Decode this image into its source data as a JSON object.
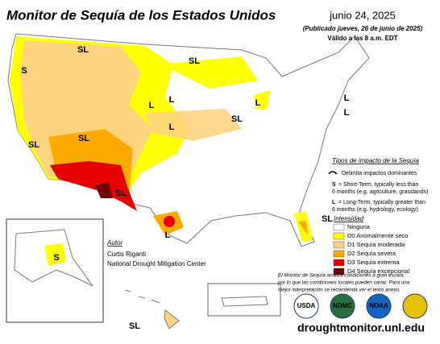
{
  "header": {
    "title": "Monitor de Sequía de los Estados Unidos",
    "date": "junio 24, 2025",
    "published": "(Publicado jueves, 26 de junio de 2025)",
    "valid": "Válido a las 8 a.m. EDT"
  },
  "impact_types": {
    "title": "Tipos de impacto de la Sequía",
    "boundary": "Delimita impactos dominantes",
    "short_key": "S",
    "short_text_1": "= Short-Term, typically less than",
    "short_text_2": "6 months (e.g. agriculture, grasslands)",
    "long_key": "L",
    "long_text_1": "= Long-Term, typically greater than",
    "long_text_2": "6 months (e.g. hydrology, ecology)"
  },
  "intensity": {
    "title": "Intensidad",
    "levels": [
      {
        "label": "Ninguna",
        "color": "#ffffff"
      },
      {
        "label": "D0 Anomalmente seco",
        "color": "#ffff00"
      },
      {
        "label": "D1 Sequía moderada",
        "color": "#fcd37f"
      },
      {
        "label": "D2 Sequía severa",
        "color": "#ffaa00"
      },
      {
        "label": "D3 Sequía extrema",
        "color": "#e60000"
      },
      {
        "label": "D4 Sequía excepcional",
        "color": "#730000"
      }
    ]
  },
  "author": {
    "title": "Autor",
    "name": "Curtis Riganti",
    "org": "National Drought Mitigation Center"
  },
  "note": [
    "El Monitor de Sequía analiza condiciones a gran escala,",
    "por lo que las condiciones locales pueden variar. Para una",
    "mejor interpretación se recomienda ver el texto anexo."
  ],
  "logos": [
    "USDA",
    "NDMC",
    "NOAA"
  ],
  "url": "droughtmonitor.unl.edu",
  "map_labels": [
    "SL",
    "S",
    "SL",
    "L",
    "L",
    "L",
    "SL",
    "L",
    "SL",
    "SL",
    "L",
    "SL",
    "L",
    "L",
    "S",
    "SL",
    "SL"
  ]
}
